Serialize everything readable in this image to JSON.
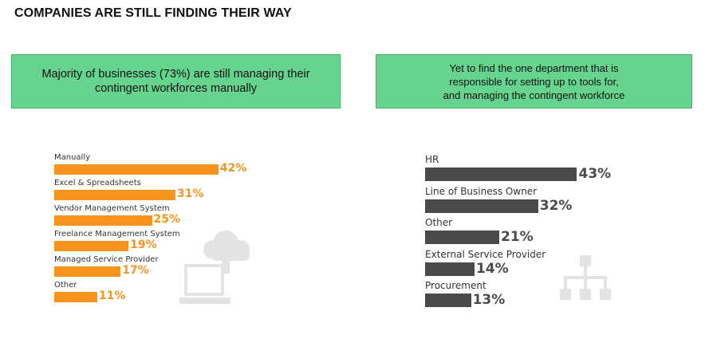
{
  "title": "COMPANIES ARE STILL FINDING THEIR WAY",
  "callouts": {
    "left": "Majority of businesses (73%) are still managing their\ncontingent workforces manually",
    "right": "Yet to find the one department that is\nresponsible for setting up to tools for,\nand managing the contingent workforce"
  },
  "colors": {
    "callout_bg": "#66d48f",
    "left_bar": "#f7941d",
    "right_bar": "#4a4a4a",
    "watermark": "#e3e3e3"
  },
  "icons": {
    "left_watermark": "cloud-upload-laptop-icon",
    "right_watermark": "org-chart-icon"
  },
  "chart_data": [
    {
      "type": "bar",
      "orientation": "horizontal",
      "categories": [
        "Manually",
        "Excel & Spreadsheets",
        "Vendor Management System",
        "Freelance Management System",
        "Managed Service Provider",
        "Other"
      ],
      "values": [
        42,
        31,
        25,
        19,
        17,
        11
      ],
      "labels": [
        "42%",
        "31%",
        "25%",
        "19%",
        "17%",
        "11%"
      ],
      "unit": "%"
    },
    {
      "type": "bar",
      "orientation": "horizontal",
      "categories": [
        "HR",
        "Line of Business Owner",
        "Other",
        "External Service Provider",
        "Procurement"
      ],
      "values": [
        43,
        32,
        21,
        14,
        13
      ],
      "labels": [
        "43%",
        "32%",
        "21%",
        "14%",
        "13%"
      ],
      "unit": "%"
    }
  ]
}
